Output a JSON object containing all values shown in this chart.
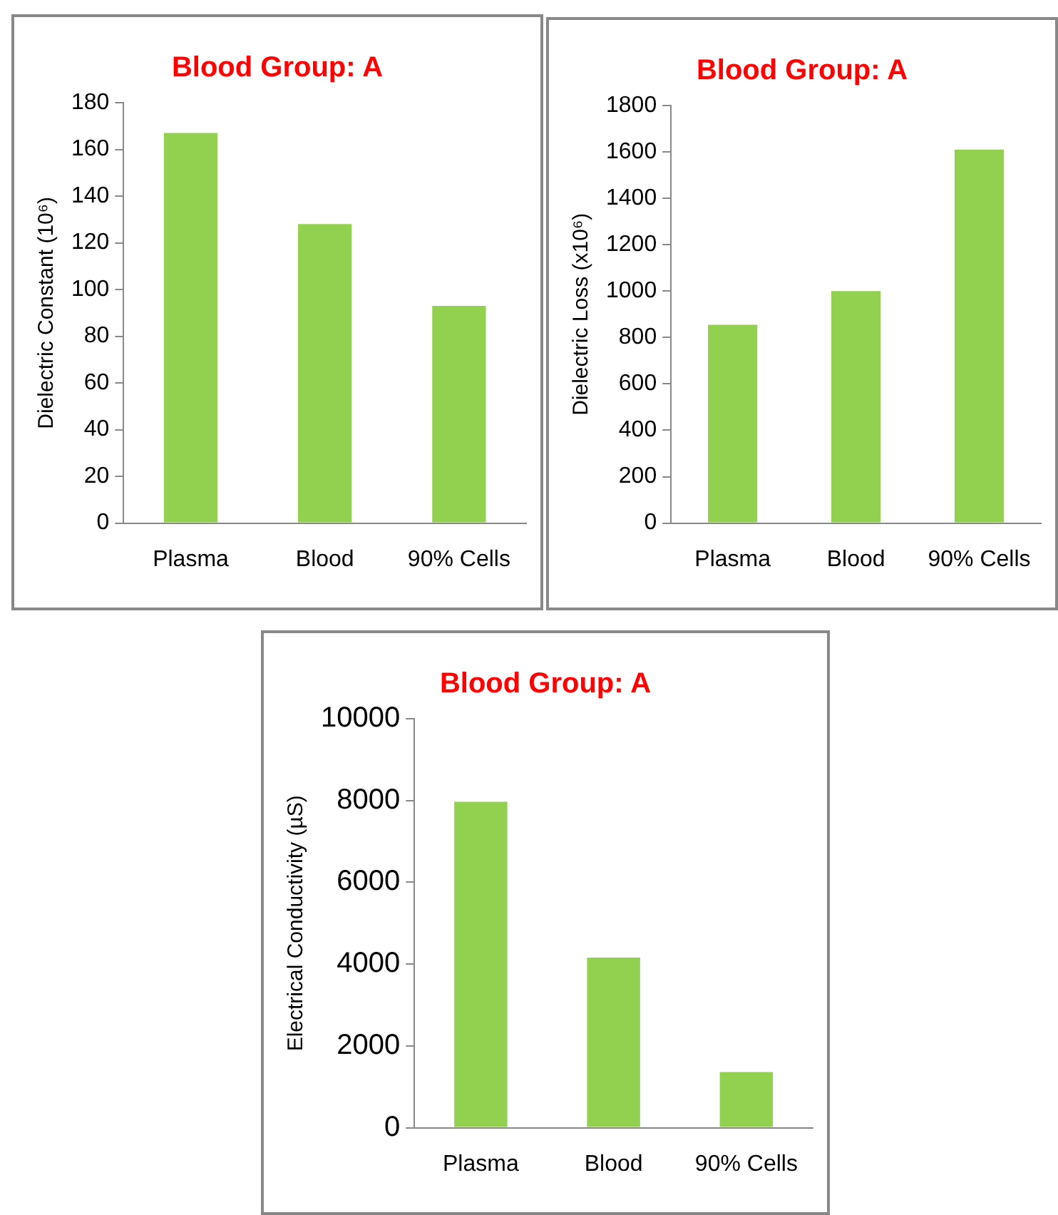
{
  "chart_data": [
    {
      "type": "bar",
      "title": "Blood Group: A",
      "ylabel": "Dielectric Constant (10⁶)",
      "categories": [
        "Plasma",
        "Blood",
        "90% Cells"
      ],
      "values": [
        167,
        128,
        93
      ],
      "color": "#92d050",
      "ylim": [
        0,
        180
      ],
      "yticks": [
        0,
        20,
        40,
        60,
        80,
        100,
        120,
        140,
        160,
        180
      ],
      "grid": false,
      "legend": false
    },
    {
      "type": "bar",
      "title": "Blood Group: A",
      "ylabel": "Dielectric Loss (x10⁶)",
      "categories": [
        "Plasma",
        "Blood",
        "90% Cells"
      ],
      "values": [
        855,
        1000,
        1610
      ],
      "color": "#92d050",
      "ylim": [
        0,
        1800
      ],
      "yticks": [
        0,
        200,
        400,
        600,
        800,
        1000,
        1200,
        1400,
        1600,
        1800
      ],
      "grid": false,
      "legend": false
    },
    {
      "type": "bar",
      "title": "Blood Group: A",
      "ylabel": "Electrical Conductivity (µS)",
      "categories": [
        "Plasma",
        "Blood",
        "90% Cells"
      ],
      "values": [
        7970,
        4160,
        1360
      ],
      "color": "#92d050",
      "ylim": [
        0,
        10000
      ],
      "yticks": [
        0,
        2000,
        4000,
        6000,
        8000,
        10000
      ],
      "grid": false,
      "legend": false
    }
  ]
}
